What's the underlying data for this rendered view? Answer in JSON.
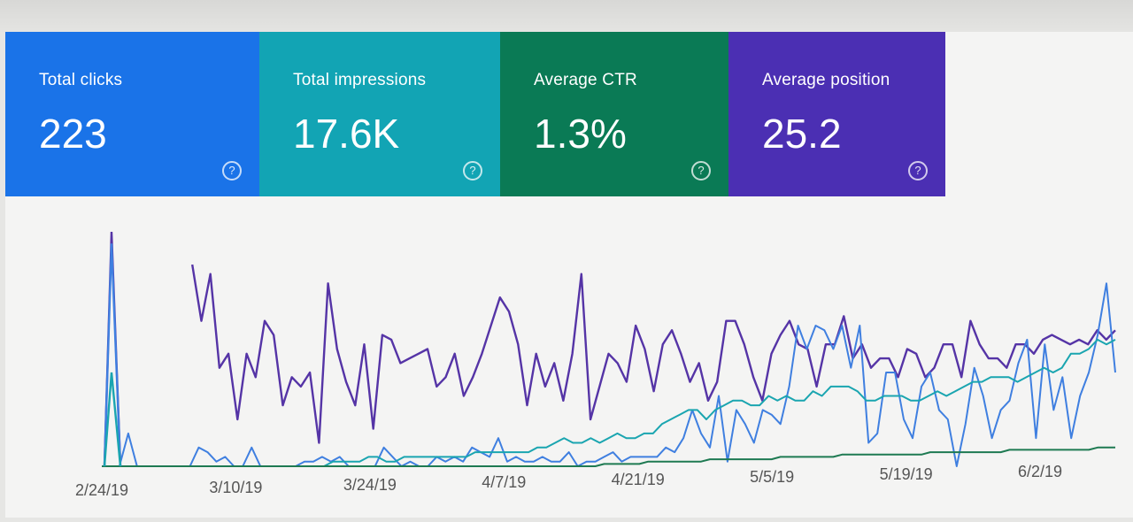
{
  "metrics": [
    {
      "label": "Total clicks",
      "value": "223",
      "color": "#1a73e8"
    },
    {
      "label": "Total impressions",
      "value": "17.6K",
      "color": "#12a4b4"
    },
    {
      "label": "Average CTR",
      "value": "1.3%",
      "color": "#0a7a55"
    },
    {
      "label": "Average position",
      "value": "25.2",
      "color": "#4b2fb3"
    }
  ],
  "help_glyph": "?",
  "chart_data": {
    "type": "line",
    "x_tick_labels": [
      "2/24/19",
      "3/10/19",
      "3/24/19",
      "4/7/19",
      "4/21/19",
      "5/5/19",
      "5/19/19",
      "6/2/19"
    ],
    "x_range": [
      "2/22/19",
      "6/17/19"
    ],
    "y_axis_labels_visible": false,
    "grid": false,
    "series": [
      {
        "color": "#5534a6",
        "values": [
          null,
          null,
          null,
          null,
          null,
          null,
          null,
          null,
          null,
          null,
          86,
          62,
          82,
          42,
          48,
          20,
          48,
          38,
          62,
          56,
          26,
          38,
          34,
          40,
          10,
          78,
          50,
          36,
          26,
          52,
          16,
          56,
          54,
          44,
          46,
          48,
          50,
          34,
          38,
          48,
          30,
          38,
          48,
          60,
          72,
          66,
          52,
          26,
          48,
          34,
          44,
          28,
          48,
          82,
          20,
          34,
          48,
          44,
          36,
          60,
          50,
          32,
          52,
          58,
          48,
          36,
          44,
          28,
          36,
          62,
          62,
          52,
          38,
          28,
          48,
          56,
          62,
          52,
          50,
          34,
          52,
          52,
          64,
          46,
          52,
          42,
          46,
          46,
          38,
          50,
          48,
          38,
          42,
          52,
          52,
          38,
          62,
          52,
          46,
          46,
          42,
          52,
          52,
          48,
          54,
          56,
          54,
          52,
          54,
          52,
          58,
          54,
          58
        ]
      },
      {
        "color": "#3f7fe0",
        "values": [
          0,
          0,
          0,
          14,
          0,
          0,
          0,
          0,
          0,
          0,
          0,
          8,
          6,
          2,
          4,
          0,
          0,
          8,
          0,
          0,
          0,
          0,
          0,
          2,
          2,
          4,
          2,
          4,
          0,
          0,
          0,
          0,
          8,
          4,
          0,
          2,
          0,
          0,
          4,
          2,
          4,
          2,
          8,
          6,
          4,
          12,
          2,
          4,
          2,
          2,
          4,
          2,
          2,
          6,
          0,
          2,
          2,
          4,
          6,
          2,
          4,
          4,
          4,
          4,
          8,
          6,
          12,
          24,
          14,
          8,
          30,
          2,
          24,
          18,
          10,
          24,
          22,
          18,
          34,
          60,
          50,
          60,
          58,
          50,
          60,
          42,
          60,
          10,
          14,
          40,
          40,
          20,
          12,
          34,
          40,
          24,
          20,
          0,
          18,
          42,
          30,
          12,
          24,
          28,
          44,
          54,
          12,
          52,
          24,
          38,
          12,
          30,
          40,
          56,
          78,
          40
        ]
      },
      {
        "color": "#1aa5b0",
        "values": [
          0,
          0,
          0,
          0,
          0,
          0,
          0,
          0,
          0,
          0,
          0,
          0,
          0,
          0,
          0,
          0,
          0,
          0,
          0,
          0,
          0,
          0,
          0,
          0,
          0,
          0,
          2,
          2,
          2,
          2,
          4,
          4,
          2,
          2,
          4,
          4,
          4,
          4,
          4,
          4,
          4,
          4,
          6,
          6,
          6,
          6,
          6,
          6,
          6,
          8,
          8,
          10,
          12,
          10,
          10,
          12,
          10,
          12,
          14,
          12,
          12,
          14,
          14,
          18,
          20,
          22,
          24,
          24,
          20,
          24,
          26,
          28,
          28,
          26,
          26,
          30,
          28,
          30,
          28,
          28,
          32,
          30,
          34,
          34,
          34,
          32,
          28,
          28,
          30,
          30,
          30,
          28,
          28,
          30,
          32,
          30,
          32,
          34,
          36,
          36,
          38,
          38,
          38,
          36,
          38,
          40,
          42,
          40,
          42,
          48,
          48,
          50,
          54,
          52,
          54
        ]
      },
      {
        "color": "#1e7a52",
        "values": [
          0,
          0,
          0,
          0,
          0,
          0,
          0,
          0,
          0,
          0,
          0,
          0,
          0,
          0,
          0,
          0,
          0,
          0,
          0,
          0,
          0,
          0,
          0,
          0,
          0,
          0,
          0,
          0,
          0,
          0,
          0,
          0,
          0,
          0,
          0,
          0,
          0,
          0,
          0,
          0,
          0,
          0,
          0,
          0,
          0,
          0,
          0,
          0,
          0,
          0,
          0,
          0,
          0,
          0,
          0,
          0,
          0,
          1,
          1,
          1,
          1,
          1,
          2,
          2,
          2,
          2,
          2,
          2,
          2,
          3,
          3,
          3,
          3,
          3,
          3,
          3,
          3,
          4,
          4,
          4,
          4,
          4,
          4,
          4,
          5,
          5,
          5,
          5,
          5,
          5,
          5,
          5,
          5,
          5,
          6,
          6,
          6,
          6,
          6,
          6,
          6,
          6,
          6,
          7,
          7,
          7,
          7,
          7,
          7,
          7,
          7,
          7,
          7,
          8,
          8,
          8
        ]
      }
    ],
    "spike": {
      "x": "2/25/19",
      "values": [
        100,
        95,
        40
      ]
    }
  }
}
